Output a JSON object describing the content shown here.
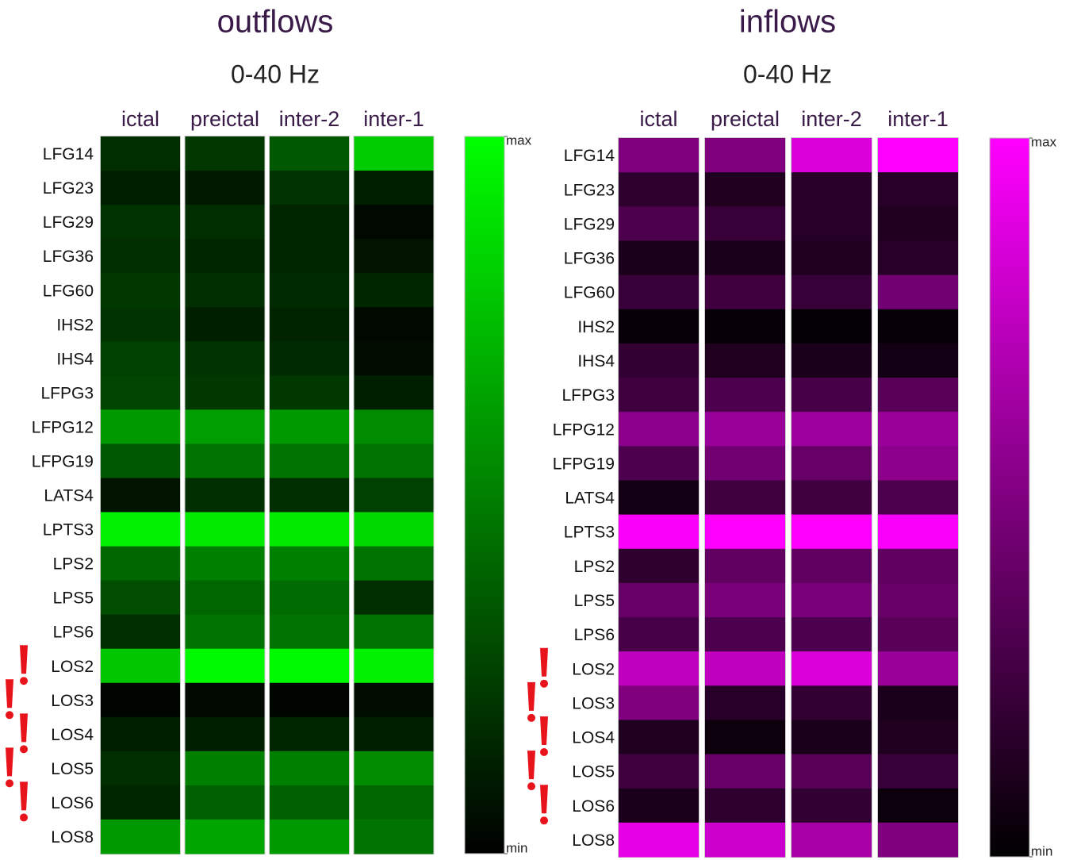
{
  "chart_data": [
    {
      "type": "heatmap",
      "title": "outflows",
      "subtitle": "0-40 Hz",
      "categories": [
        "ictal",
        "preictal",
        "inter-2",
        "inter-1"
      ],
      "rows": [
        "LFG14",
        "LFG23",
        "LFG29",
        "LFG36",
        "LFG60",
        "IHS2",
        "IHS4",
        "LFPG3",
        "LFPG12",
        "LFPG19",
        "LATS4",
        "LPTS3",
        "LPS2",
        "LPS5",
        "LPS6",
        "LOS2",
        "LOS3",
        "LOS4",
        "LOS5",
        "LOS6",
        "LOS8"
      ],
      "values": [
        [
          18,
          22,
          35,
          80
        ],
        [
          12,
          10,
          20,
          12
        ],
        [
          20,
          18,
          15,
          3
        ],
        [
          18,
          15,
          15,
          8
        ],
        [
          22,
          18,
          17,
          15
        ],
        [
          20,
          12,
          14,
          3
        ],
        [
          25,
          20,
          17,
          5
        ],
        [
          27,
          22,
          22,
          12
        ],
        [
          60,
          62,
          60,
          55
        ],
        [
          35,
          45,
          45,
          45
        ],
        [
          8,
          18,
          18,
          25
        ],
        [
          95,
          92,
          92,
          85
        ],
        [
          40,
          50,
          50,
          45
        ],
        [
          30,
          40,
          42,
          18
        ],
        [
          18,
          45,
          45,
          45
        ],
        [
          78,
          98,
          98,
          95
        ],
        [
          2,
          3,
          2,
          5
        ],
        [
          12,
          12,
          15,
          12
        ],
        [
          18,
          50,
          50,
          55
        ],
        [
          15,
          38,
          38,
          40
        ],
        [
          60,
          65,
          60,
          45
        ]
      ],
      "colormap": [
        "#000000",
        "#00ff00"
      ],
      "zlim": [
        0,
        100
      ],
      "zticks": [
        {
          "value": 100,
          "label": "max"
        },
        {
          "value": 0,
          "label": "min"
        }
      ]
    },
    {
      "type": "heatmap",
      "title": "inflows",
      "subtitle": "0-40 Hz",
      "categories": [
        "ictal",
        "preictal",
        "inter-2",
        "inter-1"
      ],
      "rows": [
        "LFG14",
        "LFG23",
        "LFG29",
        "LFG36",
        "LFG60",
        "IHS2",
        "IHS4",
        "LFPG3",
        "LFPG12",
        "LFPG19",
        "LATS4",
        "LPTS3",
        "LPS2",
        "LPS5",
        "LPS6",
        "LOS2",
        "LOS3",
        "LOS4",
        "LOS5",
        "LOS6",
        "LOS8"
      ],
      "values": [
        [
          50,
          50,
          85,
          100
        ],
        [
          18,
          12,
          15,
          15
        ],
        [
          30,
          22,
          15,
          12
        ],
        [
          10,
          10,
          12,
          15
        ],
        [
          22,
          25,
          22,
          45
        ],
        [
          3,
          3,
          2,
          3
        ],
        [
          20,
          12,
          10,
          8
        ],
        [
          25,
          30,
          28,
          35
        ],
        [
          55,
          60,
          62,
          60
        ],
        [
          30,
          45,
          40,
          55
        ],
        [
          8,
          25,
          25,
          30
        ],
        [
          98,
          100,
          100,
          98
        ],
        [
          18,
          38,
          38,
          38
        ],
        [
          40,
          48,
          48,
          40
        ],
        [
          28,
          30,
          30,
          35
        ],
        [
          75,
          75,
          85,
          60
        ],
        [
          50,
          15,
          20,
          10
        ],
        [
          12,
          5,
          10,
          12
        ],
        [
          25,
          40,
          35,
          22
        ],
        [
          10,
          18,
          20,
          5
        ],
        [
          90,
          80,
          65,
          50
        ]
      ],
      "colormap": [
        "#000000",
        "#ff00ff"
      ],
      "zlim": [
        0,
        100
      ],
      "zticks": [
        {
          "value": 100,
          "label": "max"
        },
        {
          "value": 0,
          "label": "min"
        }
      ]
    }
  ]
}
